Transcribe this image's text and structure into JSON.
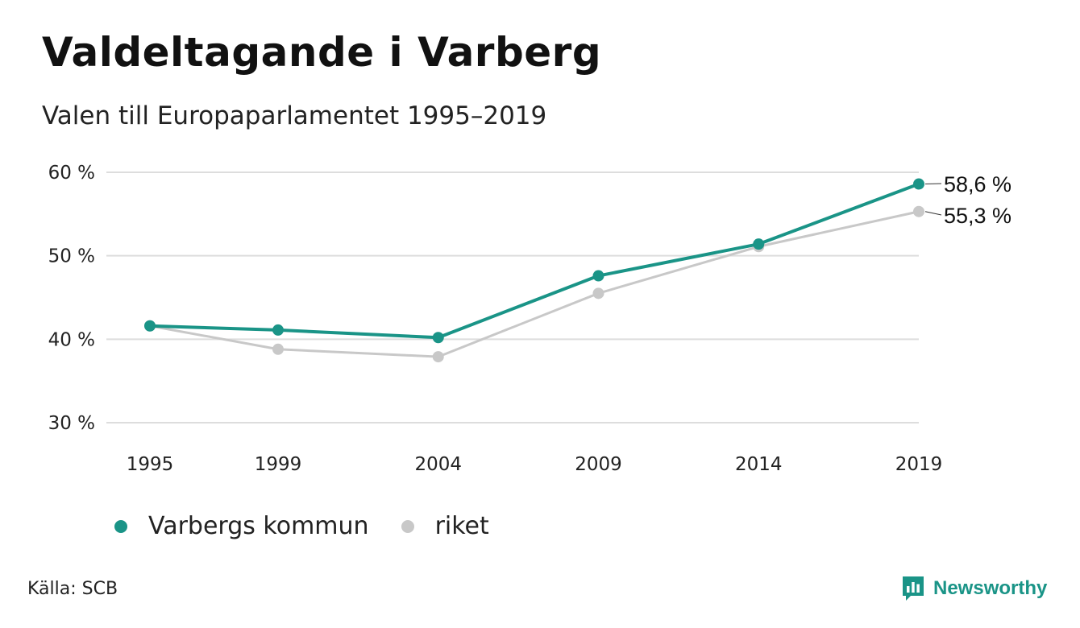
{
  "header": {
    "title": "Valdeltagande i Varberg",
    "subtitle": "Valen till Europaparlamentet 1995–2019"
  },
  "footer": {
    "source": "Källa: SCB",
    "brand": "Newsworthy",
    "brand_icon": "bar-chart-speech-bubble-icon"
  },
  "colors": {
    "primary": "#1a9487",
    "secondary": "#c8c8c8",
    "grid": "#dddddd",
    "text": "#222222"
  },
  "chart_data": {
    "type": "line",
    "categories": [
      "1995",
      "1999",
      "2004",
      "2009",
      "2014",
      "2019"
    ],
    "x": [
      1995,
      1999,
      2004,
      2009,
      2014,
      2019
    ],
    "series": [
      {
        "name": "Varbergs kommun",
        "color": "#1a9487",
        "values": [
          41.6,
          41.1,
          40.2,
          47.6,
          51.4,
          58.6
        ],
        "end_label": "58,6 %"
      },
      {
        "name": "riket",
        "color": "#c8c8c8",
        "values": [
          41.6,
          38.8,
          37.9,
          45.5,
          51.1,
          55.3
        ],
        "end_label": "55,3 %"
      }
    ],
    "ylim": [
      30,
      60
    ],
    "yticks": [
      60,
      50,
      40,
      30
    ],
    "ytick_labels": [
      "60 %",
      "50 %",
      "40 %",
      "30 %"
    ],
    "xlabel": "",
    "ylabel": "",
    "grid": true,
    "legend_position": "bottom-left"
  }
}
